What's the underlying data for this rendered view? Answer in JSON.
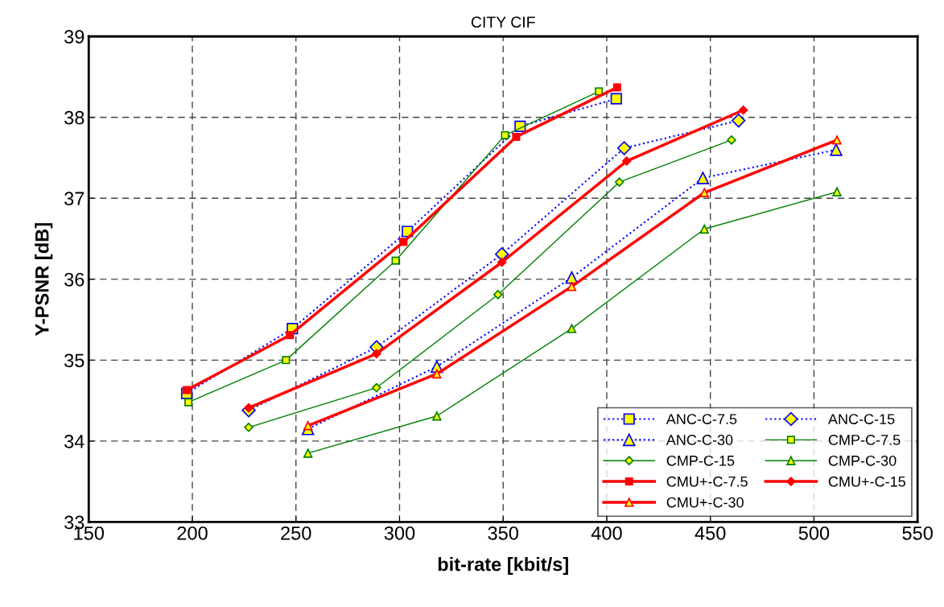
{
  "chart_data": {
    "type": "line",
    "title": "CITY CIF",
    "xlabel": "bit-rate [kbit/s]",
    "ylabel": "Y-PSNR [dB]",
    "xlim": [
      150,
      550
    ],
    "xticks": [
      150,
      200,
      250,
      300,
      350,
      400,
      450,
      500,
      550
    ],
    "ylim": [
      33,
      39
    ],
    "yticks": [
      33,
      34,
      35,
      36,
      37,
      38,
      39
    ],
    "grid": true,
    "legend": "bottom right",
    "series": [
      {
        "name": "ANC-C-7.5",
        "color": "#0000ff",
        "line_style": "dotted",
        "marker": "square",
        "x": [
          197.3,
          248.3,
          303.8,
          358.2,
          404.6
        ],
        "values": [
          34.59,
          35.39,
          36.59,
          37.89,
          38.23
        ]
      },
      {
        "name": "ANC-C-15",
        "color": "#0000ff",
        "line_style": "dotted",
        "marker": "diamond",
        "x": [
          227.2,
          288.9,
          349.4,
          408.4,
          463.6
        ],
        "values": [
          34.38,
          35.16,
          36.31,
          37.62,
          37.96
        ]
      },
      {
        "name": "ANC-C-30",
        "color": "#0000ff",
        "line_style": "dotted",
        "marker": "triangle",
        "x": [
          255.8,
          318.0,
          383.1,
          446.4,
          510.7
        ],
        "values": [
          34.15,
          34.92,
          36.02,
          37.25,
          37.6
        ]
      },
      {
        "name": "CMP-C-7.5",
        "color": "#008000",
        "line_style": "solid",
        "marker": "square",
        "x": [
          198.1,
          245.2,
          298.1,
          350.9,
          396.2
        ],
        "values": [
          34.48,
          35.0,
          36.23,
          37.78,
          38.32
        ]
      },
      {
        "name": "CMP-C-15",
        "color": "#008000",
        "line_style": "solid",
        "marker": "diamond",
        "x": [
          227.2,
          288.9,
          347.5,
          406.1,
          460.2
        ],
        "values": [
          34.17,
          34.66,
          35.81,
          37.2,
          37.72
        ]
      },
      {
        "name": "CMP-C-30",
        "color": "#008000",
        "line_style": "solid",
        "marker": "triangle",
        "x": [
          255.8,
          318.0,
          383.1,
          447.1,
          511.1
        ],
        "values": [
          33.85,
          34.31,
          35.39,
          36.62,
          37.08
        ]
      },
      {
        "name": "CMU+-C-7.5",
        "color": "#ff0000",
        "line_style": "solid",
        "marker": "square",
        "x": [
          197.3,
          247.1,
          301.9,
          356.3,
          405.0
        ],
        "values": [
          34.63,
          35.31,
          36.46,
          37.76,
          38.37
        ]
      },
      {
        "name": "CMU+-C-15",
        "color": "#ff0000",
        "line_style": "solid",
        "marker": "diamond",
        "x": [
          227.2,
          288.9,
          349.4,
          409.6,
          465.9
        ],
        "values": [
          34.41,
          35.08,
          36.21,
          37.46,
          38.09
        ]
      },
      {
        "name": "CMU+-C-30",
        "color": "#ff0000",
        "line_style": "solid",
        "marker": "triangle",
        "x": [
          255.8,
          318.0,
          383.1,
          447.1,
          511.1
        ],
        "values": [
          34.19,
          34.83,
          35.91,
          37.07,
          37.72
        ]
      }
    ]
  }
}
